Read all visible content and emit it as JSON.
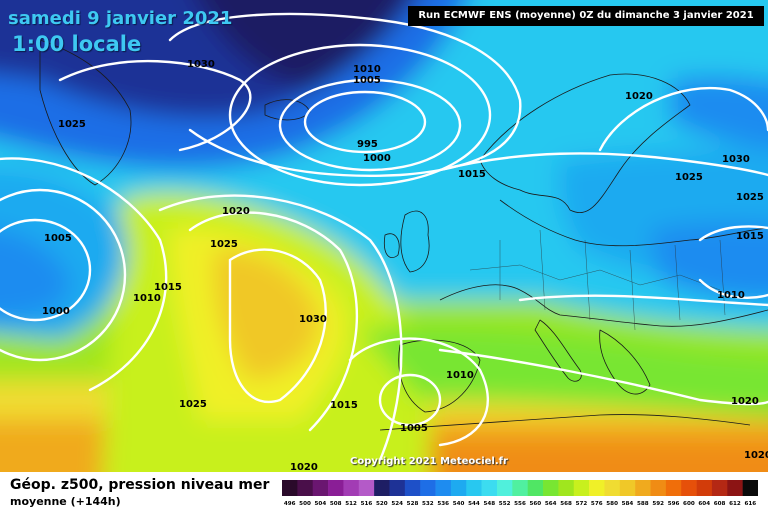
{
  "header": {
    "date": "samedi 9 janvier 2021",
    "time": "1:00 locale",
    "run": "Run ECMWF ENS (moyenne) 0Z du dimanche 3 janvier 2021"
  },
  "map": {
    "copyright": "Copyright 2021 Meteociel.fr",
    "isobar_labels": [
      "1030",
      "1010",
      "1005",
      "995",
      "1000",
      "1025",
      "1020",
      "1015",
      "1030",
      "1025",
      "1025",
      "1015",
      "1010",
      "1020",
      "1025",
      "1005",
      "1015",
      "1010",
      "1000",
      "1030",
      "1025",
      "1015",
      "1010",
      "1015",
      "1005",
      "1020",
      "1020",
      "1020"
    ]
  },
  "footer": {
    "param_title": "Géop. z500, pression niveau mer",
    "param_sub": "moyenne  (+144h)"
  },
  "legend": {
    "values": [
      "496",
      "500",
      "504",
      "508",
      "512",
      "516",
      "520",
      "524",
      "528",
      "532",
      "536",
      "540",
      "544",
      "548",
      "552",
      "556",
      "560",
      "564",
      "568",
      "572",
      "576",
      "580",
      "584",
      "588",
      "592",
      "596",
      "600",
      "604",
      "608",
      "612",
      "616"
    ],
    "colors": [
      "#2a0a2a",
      "#4a0f4a",
      "#6a1670",
      "#8a1e96",
      "#a23cb4",
      "#b45ac8",
      "#1e1e64",
      "#1e3296",
      "#1e50c8",
      "#1e6ee6",
      "#1e8cf0",
      "#1eaaf0",
      "#28c8f0",
      "#3cdcf0",
      "#50f0dc",
      "#50f0a0",
      "#50e664",
      "#78e632",
      "#a0e61e",
      "#c8f01e",
      "#f0f028",
      "#f0dc32",
      "#f0c828",
      "#f0aa1e",
      "#f08c14",
      "#f06e0a",
      "#e6500a",
      "#d23c0a",
      "#b42814",
      "#8c1414",
      "#0a0a0a"
    ]
  }
}
